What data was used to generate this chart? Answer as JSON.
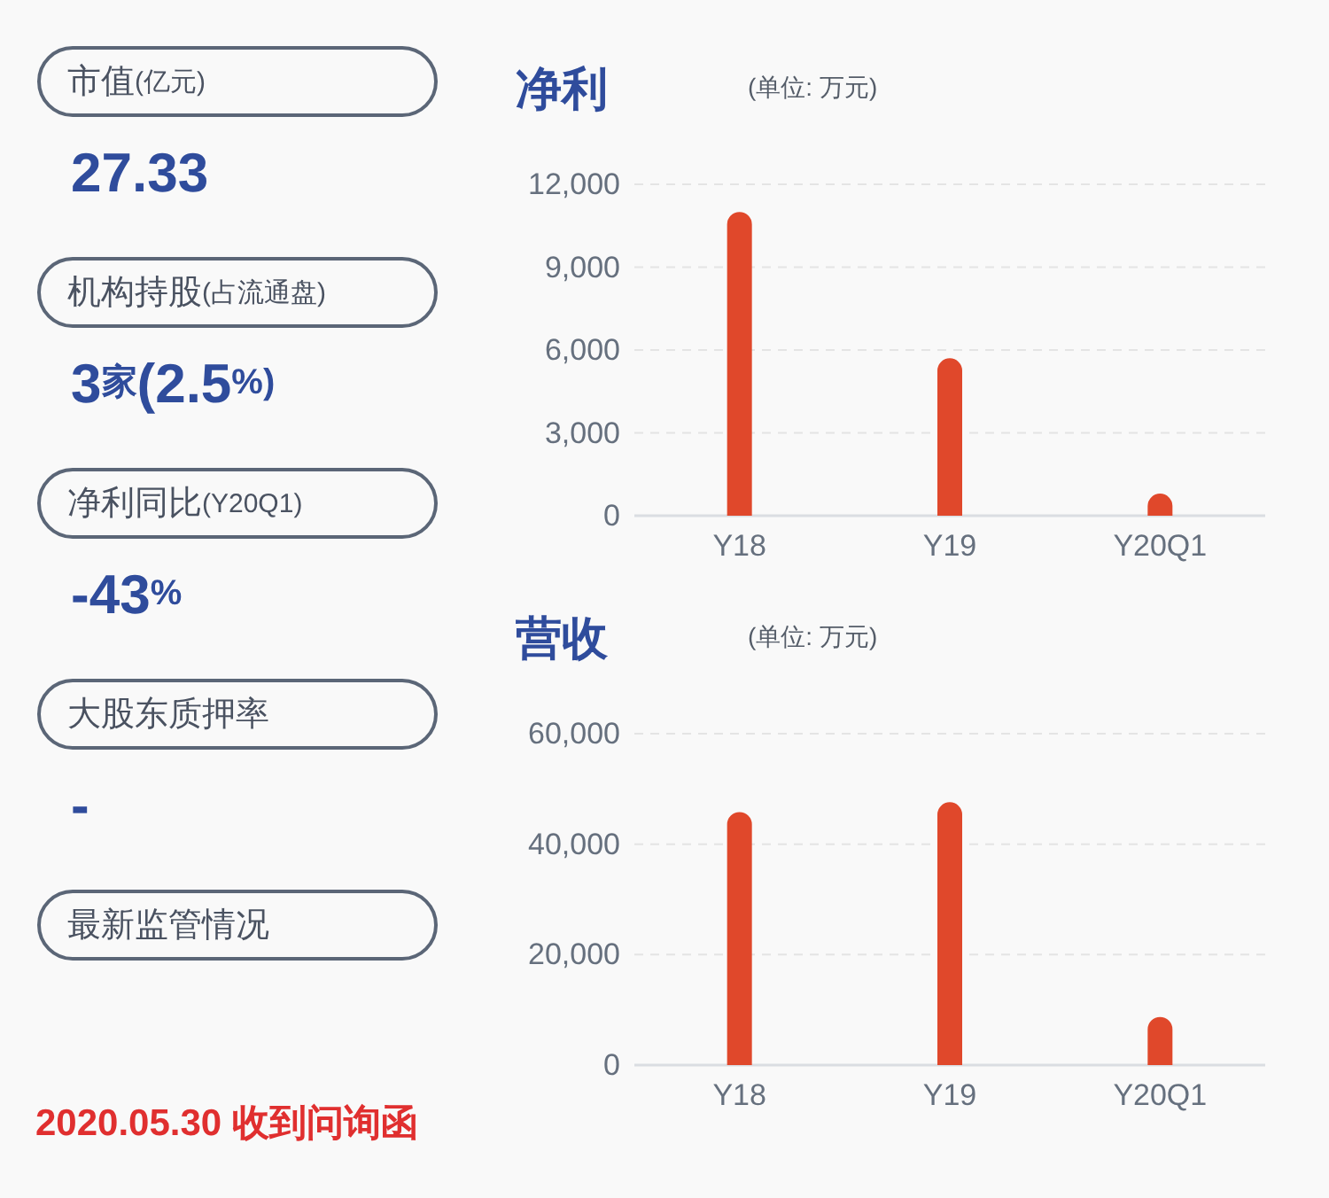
{
  "chart_data": [
    {
      "type": "other",
      "annotations": [
        "市值(亿元)",
        "27.33",
        "机构持股(占流通盘)",
        "3家(2.5%)",
        "净利同比(Y20Q1)",
        "-43%",
        "大股东质押率",
        "-",
        "最新监管情况",
        "2020.05.30 收到问询函"
      ]
    },
    {
      "type": "bar",
      "title": "净利",
      "subtitle": "(单位: 万元)",
      "categories": [
        "Y18",
        "Y19",
        "Y20Q1"
      ],
      "values": [
        11000,
        5700,
        800
      ],
      "color": "#e0482b",
      "ylim": [
        0,
        12000
      ],
      "yticks": [
        0,
        {
          "value": 3000,
          "label": "3,000"
        },
        {
          "value": 6000,
          "label": "6,000"
        },
        {
          "value": 9000,
          "label": "9,000"
        },
        {
          "value": 12000,
          "label": "12,000"
        }
      ],
      "grid": "y"
    },
    {
      "type": "bar",
      "title": "营收",
      "subtitle": "(单位: 万元)",
      "categories": [
        "Y18",
        "Y19",
        "Y20Q1"
      ],
      "values": [
        45800,
        47600,
        8700
      ],
      "color": "#e0482b",
      "ylim": [
        0,
        60000
      ],
      "yticks": [
        0,
        {
          "value": 20000,
          "label": "20,000"
        },
        {
          "value": 40000,
          "label": "40,000"
        },
        {
          "value": 60000,
          "label": "60,000"
        }
      ],
      "grid": "y"
    }
  ]
}
